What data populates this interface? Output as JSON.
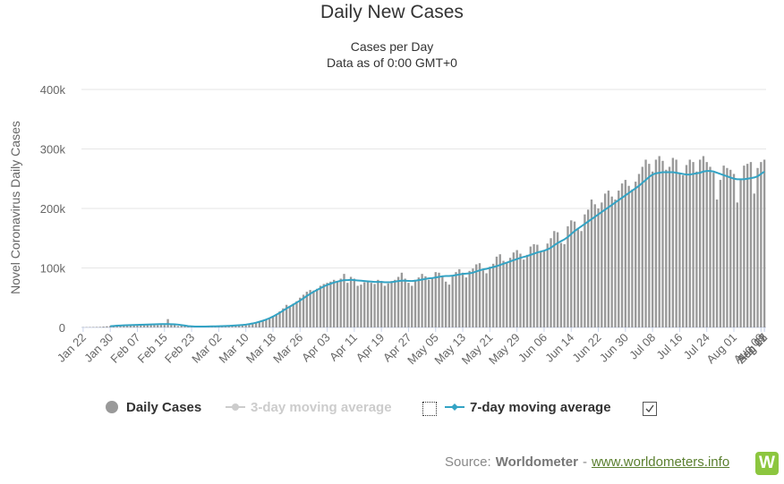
{
  "title": "Daily New Cases",
  "subtitle_line1": "Cases per Day",
  "subtitle_line2": "Data as of 0:00 GMT+0",
  "source": {
    "prefix": "Source:",
    "brand": "Worldometer",
    "separator": "-",
    "link_text": "www.worldometers.info",
    "logo_letter": "W"
  },
  "legend": {
    "daily": "Daily Cases",
    "ma3": "3-day moving average",
    "ma7": "7-day moving average"
  },
  "colors": {
    "bars": "#999999",
    "ma7_line": "#33a3c4",
    "ma3_dim": "#cccccc",
    "grid": "#e6e6e6",
    "logo": "#8cc63f"
  },
  "chart_data": {
    "type": "bar",
    "ylabel": "Novel Coronavirus Daily Cases",
    "ylim": [
      0,
      400000
    ],
    "yticks": [
      "0",
      "100k",
      "200k",
      "300k",
      "400k"
    ],
    "yticks_values": [
      0,
      100000,
      200000,
      300000,
      400000
    ],
    "xticks": [
      "Jan 22",
      "Jan 30",
      "Feb 07",
      "Feb 15",
      "Feb 23",
      "Mar 02",
      "Mar 10",
      "Mar 18",
      "Mar 26",
      "Apr 03",
      "Apr 11",
      "Apr 19",
      "Apr 27",
      "May 05",
      "May 13",
      "May 21",
      "May 29",
      "Jun 06",
      "Jun 14",
      "Jun 22",
      "Jun 30",
      "Jul 08",
      "Jul 16",
      "Jul 24",
      "Aug 01",
      "Aug 09",
      "Aug 17",
      "Aug 25",
      "Sep 02"
    ],
    "date_range": [
      "Jan 22",
      "Sep 02"
    ],
    "grid": true,
    "legend_position": "bottom",
    "series": [
      {
        "name": "Daily Cases",
        "style": "bars",
        "values": [
          500,
          600,
          700,
          800,
          900,
          1000,
          1500,
          2000,
          2500,
          3000,
          3200,
          3500,
          3700,
          3500,
          3900,
          4000,
          3800,
          4200,
          4500,
          4100,
          4300,
          4000,
          3900,
          4500,
          4200,
          14000,
          5000,
          4100,
          2500,
          3000,
          2200,
          1500,
          1800,
          1200,
          1500,
          1500,
          1600,
          1600,
          1700,
          1700,
          1800,
          2000,
          2200,
          2500,
          2600,
          2700,
          2900,
          3300,
          3800,
          4500,
          6000,
          8000,
          9000,
          11000,
          13000,
          16000,
          19000,
          22000,
          27000,
          32000,
          38000,
          35000,
          40000,
          44000,
          50000,
          55000,
          60000,
          63000,
          62000,
          65000,
          70000,
          73000,
          75000,
          77000,
          80000,
          78000,
          82000,
          90000,
          75000,
          85000,
          82000,
          70000,
          72000,
          76000,
          79000,
          75000,
          73000,
          80000,
          78000,
          70000,
          74000,
          78000,
          80000,
          85000,
          92000,
          82000,
          75000,
          70000,
          80000,
          84000,
          90000,
          86000,
          80000,
          82000,
          93000,
          92000,
          86000,
          77000,
          72000,
          87000,
          93000,
          98000,
          92000,
          84000,
          95000,
          99000,
          106000,
          108000,
          96000,
          91000,
          102000,
          107000,
          119000,
          123000,
          112000,
          108000,
          117000,
          126000,
          130000,
          124000,
          114000,
          122000,
          136000,
          140000,
          139000,
          128000,
          130000,
          141000,
          150000,
          162000,
          160000,
          142000,
          140000,
          170000,
          180000,
          178000,
          165000,
          162000,
          190000,
          198000,
          215000,
          207000,
          200000,
          210000,
          225000,
          230000,
          220000,
          215000,
          230000,
          242000,
          248000,
          238000,
          232000,
          245000,
          258000,
          270000,
          282000,
          275000,
          262000,
          282000,
          288000,
          280000,
          265000,
          270000,
          285000,
          282000,
          260000,
          256000,
          273000,
          282000,
          278000,
          262000,
          282000,
          288000,
          278000,
          270000,
          260000,
          215000,
          248000,
          272000,
          268000,
          265000,
          258000,
          210000,
          250000,
          272000,
          275000,
          278000,
          225000,
          268000,
          278000,
          282000
        ]
      },
      {
        "name": "7-day moving average",
        "style": "line",
        "values": [
          0,
          0,
          0,
          0,
          0,
          0,
          0,
          0,
          2000,
          2500,
          3000,
          3200,
          3500,
          3700,
          3900,
          4100,
          4300,
          4500,
          4700,
          4800,
          5000,
          5200,
          5500,
          5600,
          5700,
          5700,
          5500,
          5200,
          4800,
          4000,
          3200,
          2200,
          1800,
          1500,
          1500,
          1500,
          1600,
          1700,
          1800,
          1900,
          2000,
          2200,
          2400,
          2700,
          3000,
          3300,
          3700,
          4200,
          4800,
          5600,
          6700,
          8000,
          9600,
          11300,
          13300,
          15600,
          18300,
          21400,
          24700,
          28200,
          31900,
          35200,
          38400,
          41800,
          45200,
          49000,
          53000,
          56500,
          60000,
          63000,
          66000,
          69000,
          71500,
          73500,
          75500,
          77000,
          78500,
          79500,
          79500,
          80000,
          79500,
          79000,
          78500,
          78000,
          77500,
          77000,
          76500,
          76500,
          76500,
          76000,
          76000,
          76200,
          77000,
          78000,
          78500,
          78500,
          78200,
          78000,
          78500,
          79500,
          80500,
          81500,
          82500,
          83000,
          84000,
          85000,
          86000,
          86500,
          86500,
          87000,
          88000,
          89000,
          90000,
          90500,
          91000,
          92000,
          94000,
          96000,
          97500,
          98500,
          100000,
          101500,
          103000,
          105000,
          107000,
          109000,
          111000,
          113000,
          115000,
          117000,
          118500,
          120000,
          122000,
          124000,
          126000,
          127500,
          129000,
          131000,
          134000,
          138000,
          142000,
          145000,
          148000,
          152000,
          157000,
          162000,
          166000,
          170000,
          174000,
          178000,
          182000,
          186000,
          190000,
          194000,
          198000,
          202000,
          206000,
          210000,
          214000,
          218000,
          222000,
          226000,
          230000,
          234000,
          238000,
          243000,
          248000,
          253000,
          257000,
          259000,
          260000,
          261000,
          261000,
          261000,
          261000,
          260000,
          259000,
          258000,
          257000,
          257000,
          258000,
          259000,
          260000,
          262000,
          263000,
          263000,
          262000,
          260000,
          258000,
          256000,
          254000,
          252000,
          250000,
          249000,
          249000,
          249000,
          250000,
          251000,
          252000,
          254000,
          258000,
          262000
        ]
      }
    ]
  }
}
